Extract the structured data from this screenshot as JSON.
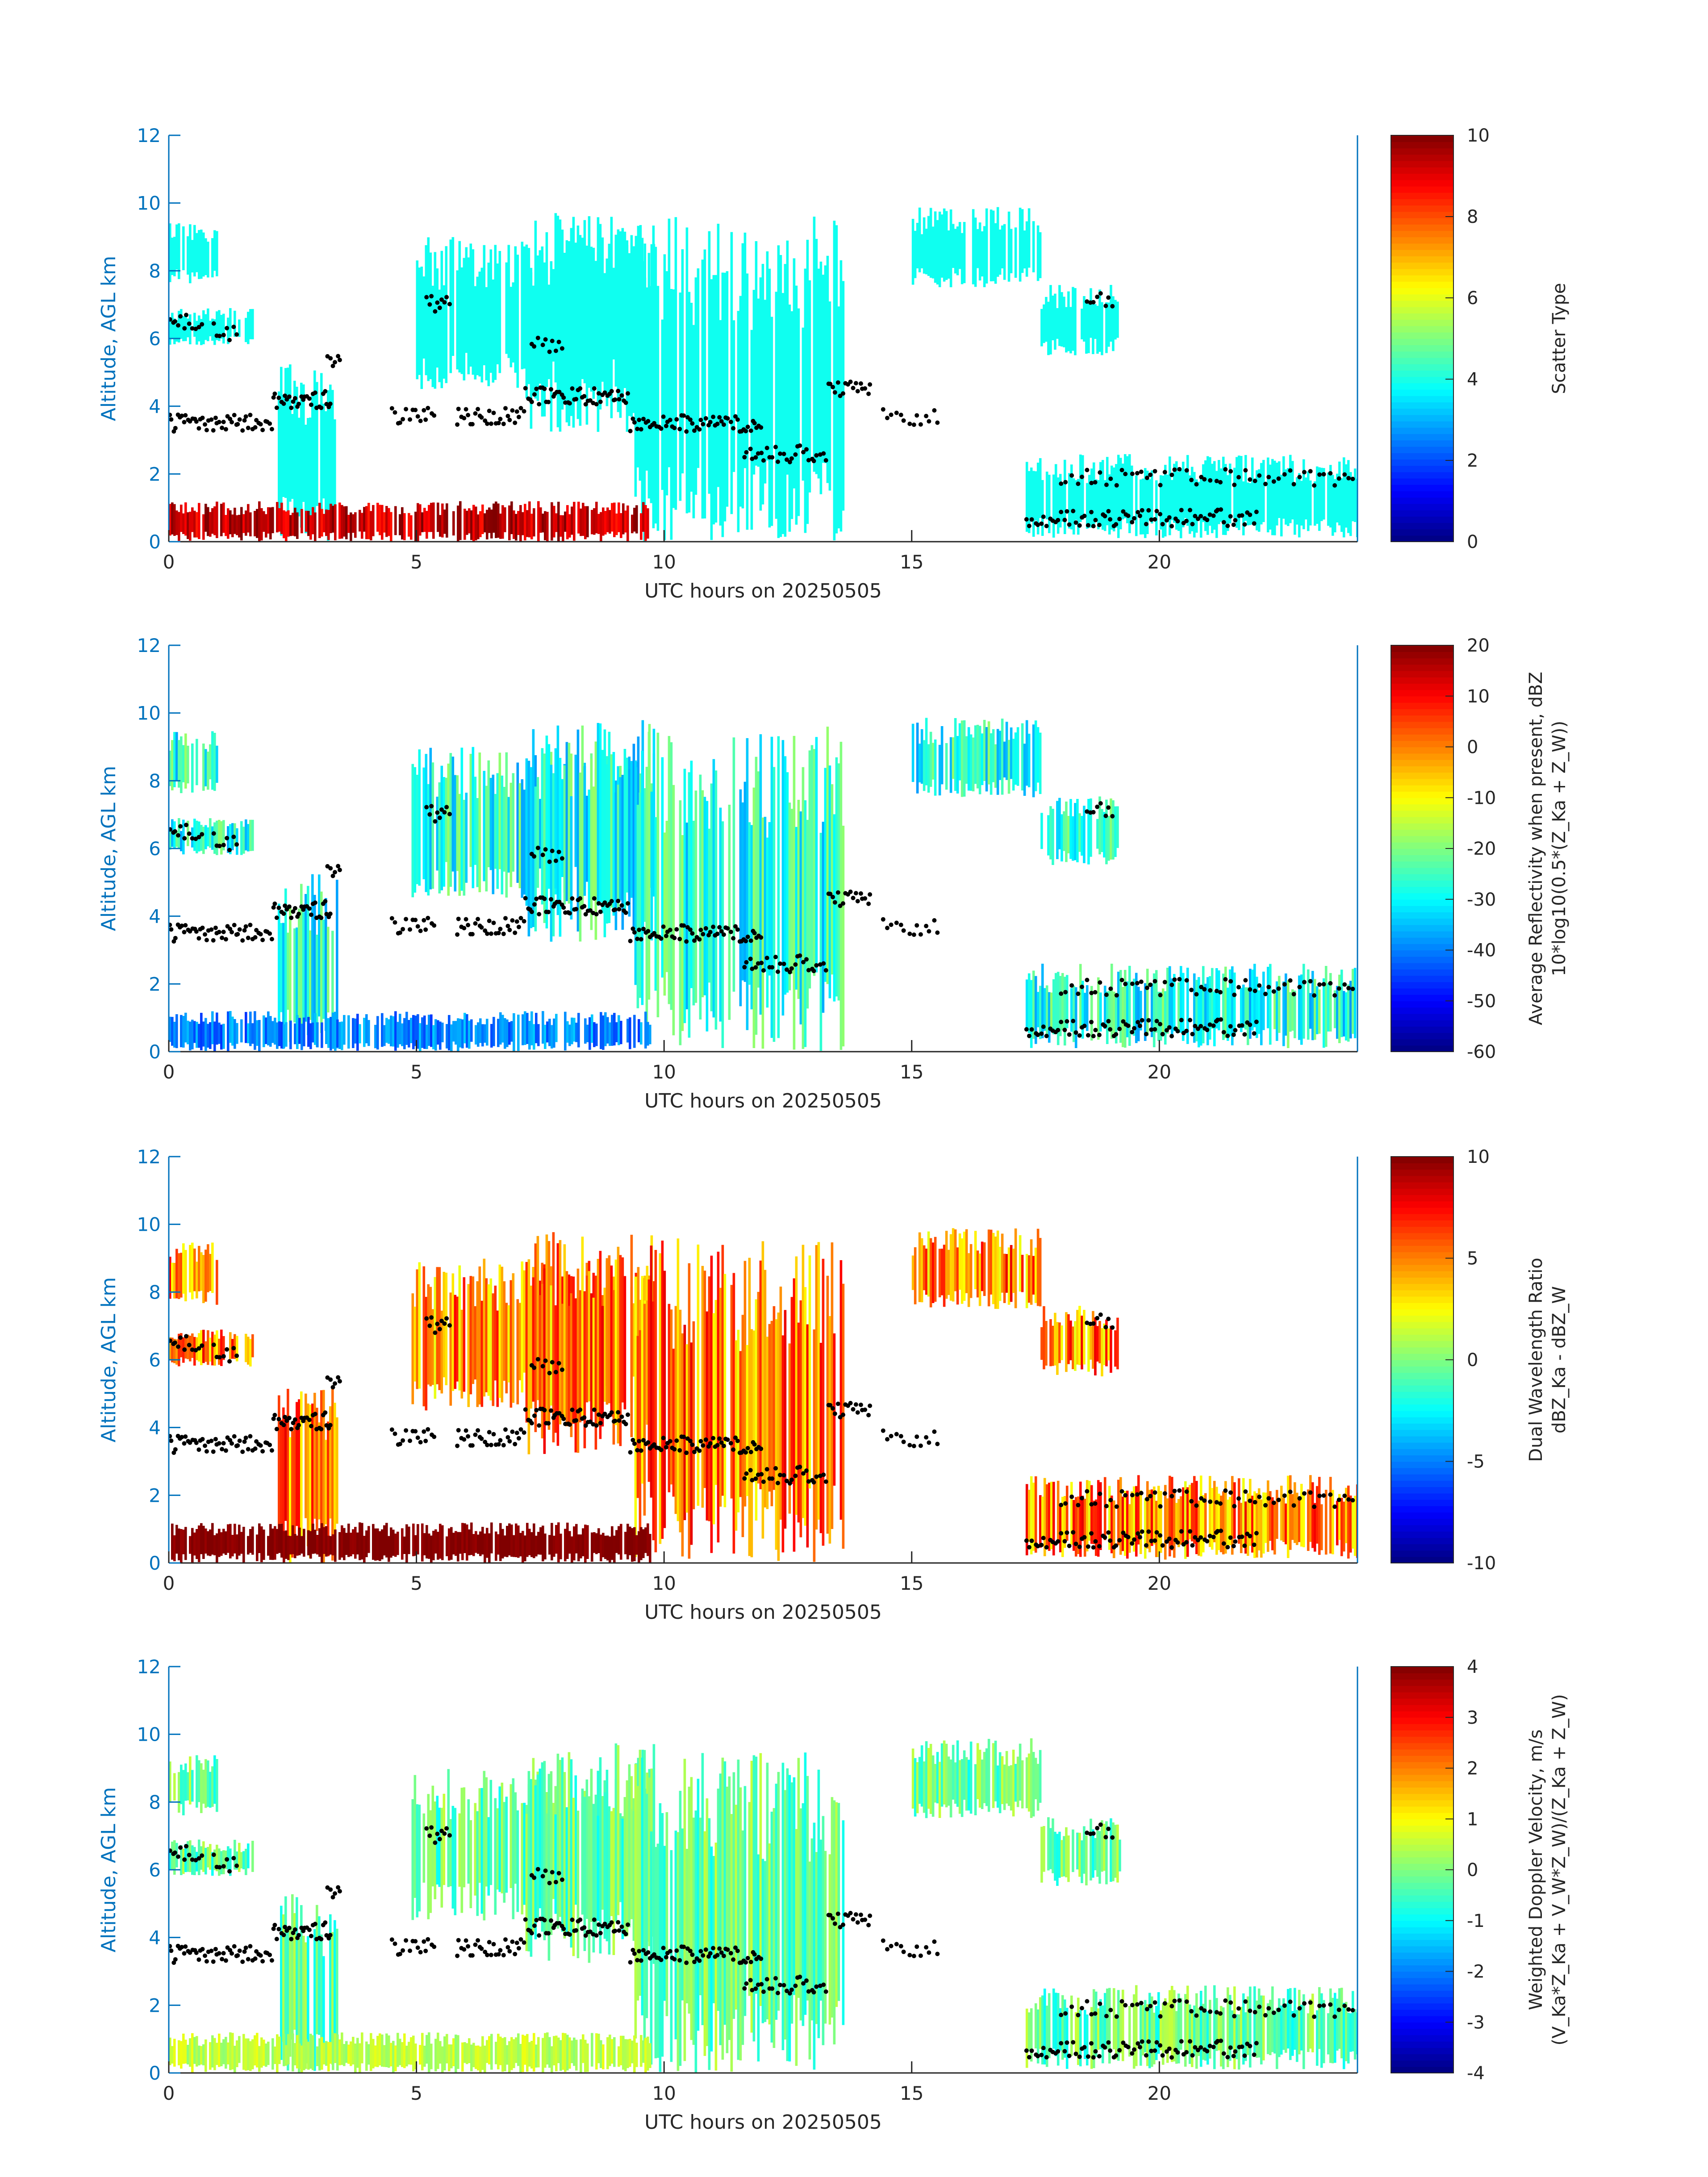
{
  "figure": {
    "date_label": "UTC hours on 20250505",
    "axis_color": "#0072BD"
  },
  "chart_data": [
    {
      "type": "heatmap",
      "variable": "scatter_type",
      "xlabel": "UTC hours on 20250505",
      "ylabel": "Altitude, AGL km",
      "xlim": [
        0,
        24
      ],
      "ylim": [
        0,
        12
      ],
      "xticks": [
        0,
        5,
        10,
        15,
        20
      ],
      "yticks": [
        0,
        2,
        4,
        6,
        8,
        10,
        12
      ],
      "colorbar": {
        "label": [
          "Scatter Type"
        ],
        "range": [
          0,
          10
        ],
        "ticks": [
          0,
          2,
          4,
          6,
          8,
          10
        ],
        "colormap": "jet"
      },
      "fields": {
        "cloud": 3.9,
        "low": 9.3,
        "low_var": 0.8
      }
    },
    {
      "type": "heatmap",
      "variable": "average_reflectivity_dBZ",
      "xlabel": "UTC hours on 20250505",
      "ylabel": "Altitude, AGL km",
      "xlim": [
        0,
        24
      ],
      "ylim": [
        0,
        12
      ],
      "xticks": [
        0,
        5,
        10,
        15,
        20
      ],
      "yticks": [
        0,
        2,
        4,
        6,
        8,
        10,
        12
      ],
      "colorbar": {
        "label": [
          "Average Reflectivity when present, dBZ",
          "10*log10(0.5*(Z_Ka + Z_W))"
        ],
        "range": [
          -60,
          20
        ],
        "ticks": [
          -60,
          -50,
          -40,
          -30,
          -20,
          -10,
          0,
          10,
          20
        ],
        "colormap": "jet"
      },
      "fields": {
        "cloud": -28,
        "cloud_var": 10,
        "low": -40,
        "low_var": 6
      }
    },
    {
      "type": "heatmap",
      "variable": "dual_wavelength_ratio_dB",
      "xlabel": "UTC hours on 20250505",
      "ylabel": "Altitude, AGL km",
      "xlim": [
        0,
        24
      ],
      "ylim": [
        0,
        12
      ],
      "xticks": [
        0,
        5,
        10,
        15,
        20
      ],
      "yticks": [
        0,
        2,
        4,
        6,
        8,
        10,
        12
      ],
      "colorbar": {
        "label": [
          "Dual Wavelength Ratio",
          "dBZ_Ka - dBZ_W"
        ],
        "range": [
          -10,
          10
        ],
        "ticks": [
          -10,
          -5,
          0,
          5,
          10
        ],
        "colormap": "jet"
      },
      "fields": {
        "cloud": 5,
        "cloud_var": 3,
        "low": 10,
        "low_var": 0.5
      }
    },
    {
      "type": "heatmap",
      "variable": "weighted_doppler_velocity_ms",
      "xlabel": "UTC hours on 20250505",
      "ylabel": "Altitude, AGL km",
      "xlim": [
        0,
        24
      ],
      "ylim": [
        0,
        12
      ],
      "xticks": [
        0,
        5,
        10,
        15,
        20
      ],
      "yticks": [
        0,
        2,
        4,
        6,
        8,
        10,
        12
      ],
      "colorbar": {
        "label": [
          "Weighted Doppler Velocity, m/s",
          "(V_Ka*Z_Ka + V_W*Z_W)/(Z_Ka + Z_W)"
        ],
        "range": [
          -4,
          4
        ],
        "ticks": [
          -4,
          -3,
          -2,
          -1,
          0,
          1,
          2,
          3,
          4
        ],
        "colormap": "jet"
      },
      "fields": {
        "cloud": -0.2,
        "cloud_var": 0.8,
        "low": 0.5,
        "low_var": 0.4
      }
    }
  ],
  "echo_regions": [
    {
      "x0": 0.0,
      "x1": 0.95,
      "y0": 7.6,
      "y1": 9.5,
      "kind": "cloud"
    },
    {
      "x0": 0.0,
      "x1": 1.7,
      "y0": 5.8,
      "y1": 6.9,
      "kind": "cloud"
    },
    {
      "x0": 2.2,
      "x1": 3.4,
      "y0": 0.0,
      "y1": 5.3,
      "kind": "cloud"
    },
    {
      "x0": 4.9,
      "x1": 9.8,
      "y0": 4.5,
      "y1": 9.0,
      "kind": "cloud"
    },
    {
      "x0": 7.2,
      "x1": 9.8,
      "y0": 3.2,
      "y1": 9.8,
      "kind": "cloud"
    },
    {
      "x0": 9.4,
      "x1": 13.6,
      "y0": 0.0,
      "y1": 9.6,
      "kind": "cloud"
    },
    {
      "x0": 15.0,
      "x1": 17.6,
      "y0": 7.5,
      "y1": 9.9,
      "kind": "cloud"
    },
    {
      "x0": 17.6,
      "x1": 19.2,
      "y0": 5.5,
      "y1": 7.6,
      "kind": "cloud"
    },
    {
      "x0": 17.3,
      "x1": 24.0,
      "y0": 0.1,
      "y1": 2.6,
      "kind": "cloud"
    },
    {
      "x0": 0.0,
      "x1": 9.7,
      "y0": 0.0,
      "y1": 1.2,
      "kind": "low"
    }
  ],
  "cloud_top_markers": [
    {
      "x0": 0.0,
      "x1": 2.1,
      "y": 3.5,
      "n": 50
    },
    {
      "x0": 0.0,
      "x1": 0.7,
      "y": 6.5,
      "n": 12
    },
    {
      "x0": 0.9,
      "x1": 1.4,
      "y": 6.2,
      "n": 8
    },
    {
      "x0": 2.1,
      "x1": 3.3,
      "y": 4.2,
      "n": 30
    },
    {
      "x0": 3.2,
      "x1": 3.5,
      "y": 5.3,
      "n": 6
    },
    {
      "x0": 4.5,
      "x1": 5.4,
      "y": 3.7,
      "n": 16
    },
    {
      "x0": 5.8,
      "x1": 7.2,
      "y": 3.7,
      "n": 30
    },
    {
      "x0": 7.2,
      "x1": 9.3,
      "y": 4.3,
      "n": 50
    },
    {
      "x0": 9.3,
      "x1": 12.0,
      "y": 3.5,
      "n": 60
    },
    {
      "x0": 11.6,
      "x1": 13.3,
      "y": 2.6,
      "n": 30
    },
    {
      "x0": 13.3,
      "x1": 14.2,
      "y": 4.5,
      "n": 18
    },
    {
      "x0": 14.4,
      "x1": 15.6,
      "y": 3.7,
      "n": 14
    },
    {
      "x0": 5.2,
      "x1": 5.7,
      "y": 7.0,
      "n": 10
    },
    {
      "x0": 7.3,
      "x1": 8.0,
      "y": 5.8,
      "n": 10
    },
    {
      "x0": 17.3,
      "x1": 22.0,
      "y": 0.7,
      "n": 80
    },
    {
      "x0": 18.0,
      "x1": 24.0,
      "y": 1.9,
      "n": 60
    },
    {
      "x0": 18.5,
      "x1": 19.1,
      "y": 7.2,
      "n": 8
    }
  ]
}
